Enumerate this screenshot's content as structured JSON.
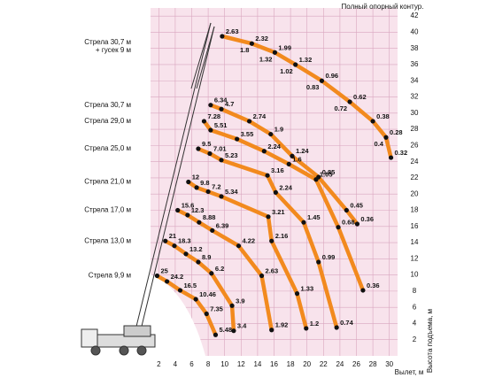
{
  "chart_data": {
    "type": "line",
    "title": "Полный опорный контур.",
    "xlabel": "Вылет, м",
    "ylabel": "Высота подъема, м",
    "xlim": [
      1,
      31
    ],
    "ylim": [
      0,
      43
    ],
    "xticks": [
      2,
      4,
      6,
      8,
      10,
      12,
      14,
      16,
      18,
      20,
      22,
      24,
      26,
      28,
      30
    ],
    "yticks": [
      2,
      4,
      6,
      8,
      10,
      12,
      14,
      16,
      18,
      20,
      22,
      24,
      26,
      28,
      30,
      32,
      34,
      36,
      38,
      40,
      42
    ],
    "grid": true,
    "color": "#f28a1e",
    "series": [
      {
        "name": [
          "Стрела 30,7 м",
          "+ гусек 9 м"
        ],
        "x": [
          9.7,
          13.3,
          16.1,
          18.6,
          21.8,
          25.2,
          28.0,
          29.6,
          30.2
        ],
        "values": [
          39.5,
          38.6,
          37.5,
          36.0,
          34.0,
          31.4,
          29.0,
          27.0,
          24.5
        ],
        "loads": [
          "2.63",
          "2.32",
          "1.99",
          "1.32",
          "0.96",
          "0.62",
          "0.38",
          "0.28",
          "0.32"
        ],
        "loads_alt": [
          null,
          "1.8",
          "1.32",
          "1.02",
          "0.83",
          "0.72",
          null,
          "0.4",
          null
        ]
      },
      {
        "name": "Стрела 30,7 м",
        "x": [
          8.3,
          9.6,
          13.0,
          15.6,
          18.2,
          21.4,
          24.8,
          26.1
        ],
        "values": [
          31.0,
          30.5,
          29.0,
          27.4,
          24.7,
          22.1,
          18.0,
          16.3
        ],
        "loads": [
          "6.34",
          "4.7",
          "2.74",
          "1.9",
          "1.24",
          "0.85",
          "0.45",
          "0.36"
        ]
      },
      {
        "name": "Стрела 29,0 м",
        "x": [
          7.5,
          8.3,
          11.5,
          14.8,
          17.8,
          21.1,
          23.8,
          26.8
        ],
        "values": [
          29.0,
          27.9,
          26.8,
          25.3,
          23.7,
          21.8,
          15.9,
          8.1
        ],
        "loads": [
          "7.28",
          "5.51",
          "3.55",
          "2.24",
          "1.6",
          "1.05",
          "0.68",
          "0.36"
        ]
      },
      {
        "name": "Стрела 25,0 м",
        "x": [
          6.8,
          8.2,
          9.6,
          15.2,
          16.2,
          19.6,
          21.4,
          23.6
        ],
        "values": [
          25.6,
          25.0,
          24.2,
          22.3,
          20.2,
          16.5,
          11.6,
          3.5
        ],
        "loads": [
          "9.5",
          "7.01",
          "5.23",
          "3.16",
          "2.24",
          "1.45",
          "0.99",
          "0.74"
        ]
      },
      {
        "name": "Стрела 21,0 м",
        "x": [
          5.6,
          6.6,
          8.0,
          9.6,
          15.3,
          15.7,
          18.8,
          19.9
        ],
        "values": [
          21.5,
          20.8,
          20.3,
          19.7,
          17.2,
          14.2,
          7.7,
          3.4
        ],
        "loads": [
          "12",
          "9.8",
          "7.2",
          "5.34",
          "3.21",
          "2.16",
          "1.33",
          "1.2"
        ]
      },
      {
        "name": "Стрела 17,0 м",
        "x": [
          4.3,
          5.5,
          6.9,
          8.5,
          11.7,
          14.5,
          15.7
        ],
        "values": [
          18.0,
          17.4,
          16.5,
          15.5,
          13.6,
          9.9,
          3.2
        ],
        "loads": [
          "15.6",
          "12.3",
          "8.88",
          "6.39",
          "4.22",
          "2.63",
          "1.92"
        ]
      },
      {
        "name": "Стрела 13,0 м",
        "x": [
          2.8,
          3.9,
          5.3,
          6.8,
          8.4,
          10.9,
          11.1
        ],
        "values": [
          14.2,
          13.6,
          12.6,
          11.6,
          10.2,
          6.2,
          3.1
        ],
        "loads": [
          "21",
          "18.3",
          "13.2",
          "8.9",
          "6.2",
          "3.9",
          "3.4"
        ]
      },
      {
        "name": "Стрела 9,9 м",
        "x": [
          1.8,
          3.0,
          4.6,
          6.5,
          7.8,
          8.9
        ],
        "values": [
          9.9,
          9.2,
          8.1,
          7.0,
          5.2,
          2.6
        ],
        "loads": [
          "25",
          "24.2",
          "16.5",
          "10.46",
          "7.35",
          "5.48"
        ]
      }
    ]
  }
}
